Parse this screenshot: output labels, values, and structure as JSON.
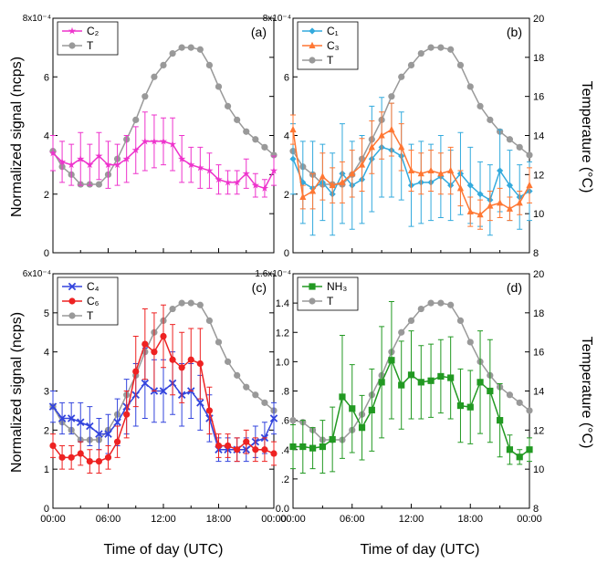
{
  "figure": {
    "x_axis_title": "Time of day (UTC)",
    "y_left_title": "Normalized signal (ncps)",
    "y_right_title": "Temperature (°C)"
  },
  "chart_data": [
    {
      "type": "line",
      "panel_label": "(a)",
      "y_multiplier": "8x10⁻⁴",
      "x_ticks": [
        "00:00",
        "06:00",
        "12:00",
        "18:00",
        "00:00"
      ],
      "xlim_hours": [
        0,
        24
      ],
      "ylim": [
        0,
        8
      ],
      "y_ticks": [
        "0",
        "2",
        "4",
        "6"
      ],
      "temperature_axis": {
        "ylim": [
          8,
          20
        ],
        "ticks": [
          "8",
          "10",
          "12",
          "14",
          "16",
          "18",
          "20"
        ]
      },
      "legend_position": "top-left",
      "series": [
        {
          "name": "C₂",
          "color": "#ee33cc",
          "marker": "star",
          "axis": "left",
          "x": [
            0,
            1,
            2,
            3,
            4,
            5,
            6,
            7,
            8,
            9,
            10,
            11,
            12,
            13,
            14,
            15,
            16,
            17,
            18,
            19,
            20,
            21,
            22,
            23,
            24
          ],
          "y": [
            3.4,
            3.1,
            3.0,
            3.2,
            3.0,
            3.3,
            3.0,
            3.0,
            3.2,
            3.5,
            3.8,
            3.8,
            3.8,
            3.7,
            3.2,
            3.0,
            2.9,
            2.8,
            2.5,
            2.4,
            2.4,
            2.7,
            2.3,
            2.2,
            2.8
          ],
          "err": [
            0.6,
            0.7,
            0.7,
            0.9,
            0.7,
            0.8,
            0.8,
            0.7,
            0.8,
            0.8,
            1.0,
            0.9,
            0.8,
            0.9,
            0.8,
            0.6,
            0.7,
            0.6,
            0.5,
            0.4,
            0.4,
            0.5,
            0.4,
            0.3,
            0.5
          ]
        },
        {
          "name": "T",
          "color": "#999999",
          "marker": "circle",
          "axis": "right",
          "x": [
            0,
            1,
            2,
            3,
            4,
            5,
            6,
            7,
            8,
            9,
            10,
            11,
            12,
            13,
            14,
            15,
            16,
            17,
            18,
            19,
            20,
            21,
            22,
            23,
            24
          ],
          "y": [
            13.2,
            12.4,
            12.0,
            11.5,
            11.5,
            11.5,
            12.0,
            12.8,
            13.8,
            14.8,
            16.0,
            17.0,
            17.6,
            18.2,
            18.5,
            18.5,
            18.4,
            17.6,
            16.5,
            15.5,
            14.8,
            14.2,
            13.8,
            13.4,
            13.0
          ]
        }
      ]
    },
    {
      "type": "line",
      "panel_label": "(b)",
      "y_multiplier": "8x10⁻⁴",
      "x_ticks": [
        "00:00",
        "06:00",
        "12:00",
        "18:00",
        "00:00"
      ],
      "xlim_hours": [
        0,
        24
      ],
      "ylim": [
        0,
        8
      ],
      "y_ticks": [
        "0",
        "2",
        "4",
        "6"
      ],
      "temperature_axis": {
        "ylim": [
          8,
          20
        ],
        "ticks": [
          "8",
          "10",
          "12",
          "14",
          "16",
          "18",
          "20"
        ]
      },
      "legend_position": "top-left",
      "series": [
        {
          "name": "C₁",
          "color": "#33aadd",
          "marker": "diamond",
          "axis": "left",
          "x": [
            0,
            1,
            2,
            3,
            4,
            5,
            6,
            7,
            8,
            9,
            10,
            11,
            12,
            13,
            14,
            15,
            16,
            17,
            18,
            19,
            20,
            21,
            22,
            23,
            24
          ],
          "y": [
            3.2,
            2.4,
            2.2,
            2.4,
            2.0,
            2.7,
            2.3,
            2.5,
            3.2,
            3.6,
            3.5,
            3.3,
            2.3,
            2.4,
            2.4,
            2.6,
            2.3,
            2.7,
            2.3,
            2.0,
            1.8,
            2.8,
            2.3,
            1.9,
            2.1
          ],
          "err": [
            1.2,
            1.4,
            1.6,
            1.3,
            1.4,
            1.7,
            1.5,
            1.5,
            1.8,
            1.7,
            1.6,
            1.5,
            1.4,
            1.4,
            1.3,
            1.4,
            1.2,
            1.4,
            1.3,
            1.1,
            1.2,
            1.4,
            1.2,
            1.1,
            1.0
          ]
        },
        {
          "name": "C₃",
          "color": "#ff7733",
          "marker": "triangle",
          "axis": "left",
          "x": [
            0,
            1,
            2,
            3,
            4,
            5,
            6,
            7,
            8,
            9,
            10,
            11,
            12,
            13,
            14,
            15,
            16,
            17,
            18,
            19,
            20,
            21,
            22,
            23,
            24
          ],
          "y": [
            4.2,
            1.9,
            2.1,
            2.6,
            2.3,
            2.4,
            2.7,
            3.0,
            3.6,
            4.0,
            4.2,
            3.6,
            2.8,
            2.7,
            2.8,
            2.7,
            2.8,
            2.2,
            1.4,
            1.3,
            1.6,
            1.7,
            1.5,
            1.7,
            2.3
          ],
          "err": [
            0.5,
            0.4,
            0.6,
            0.8,
            0.6,
            0.7,
            0.8,
            0.9,
            0.9,
            0.8,
            0.9,
            0.8,
            0.7,
            0.7,
            0.7,
            0.7,
            0.8,
            0.6,
            0.5,
            0.5,
            0.5,
            0.5,
            0.4,
            0.4,
            0.6
          ]
        },
        {
          "name": "T",
          "color": "#999999",
          "marker": "circle",
          "axis": "right",
          "x": [
            0,
            1,
            2,
            3,
            4,
            5,
            6,
            7,
            8,
            9,
            10,
            11,
            12,
            13,
            14,
            15,
            16,
            17,
            18,
            19,
            20,
            21,
            22,
            23,
            24
          ],
          "y": [
            13.2,
            12.4,
            12.0,
            11.5,
            11.5,
            11.5,
            12.0,
            12.8,
            13.8,
            14.8,
            16.0,
            17.0,
            17.6,
            18.2,
            18.5,
            18.5,
            18.4,
            17.6,
            16.5,
            15.5,
            14.8,
            14.2,
            13.8,
            13.4,
            13.0
          ]
        }
      ]
    },
    {
      "type": "line",
      "panel_label": "(c)",
      "y_multiplier": "6x10⁻⁴",
      "x_ticks": [
        "00:00",
        "06:00",
        "12:00",
        "18:00",
        "00:00"
      ],
      "xlim_hours": [
        0,
        24
      ],
      "ylim": [
        0,
        6
      ],
      "y_ticks": [
        "0",
        "1",
        "2",
        "3",
        "4",
        "5"
      ],
      "temperature_axis": {
        "ylim": [
          8,
          20
        ],
        "ticks": [
          "8",
          "10",
          "12",
          "14",
          "16",
          "18",
          "20"
        ]
      },
      "legend_position": "top-left",
      "series": [
        {
          "name": "C₄",
          "color": "#3344dd",
          "marker": "x",
          "axis": "left",
          "x": [
            0,
            1,
            2,
            3,
            4,
            5,
            6,
            7,
            8,
            9,
            10,
            11,
            12,
            13,
            14,
            15,
            16,
            17,
            18,
            19,
            20,
            21,
            22,
            23,
            24
          ],
          "y": [
            2.6,
            2.3,
            2.3,
            2.2,
            2.1,
            1.9,
            1.9,
            2.2,
            2.6,
            2.9,
            3.2,
            3.0,
            3.0,
            3.2,
            2.9,
            3.0,
            2.7,
            2.3,
            1.5,
            1.5,
            1.5,
            1.5,
            1.7,
            1.8,
            2.3
          ],
          "err": [
            0.4,
            0.4,
            0.4,
            0.5,
            0.5,
            0.4,
            0.5,
            0.6,
            0.7,
            0.8,
            0.9,
            0.8,
            0.8,
            0.8,
            0.8,
            0.7,
            0.7,
            0.6,
            0.3,
            0.3,
            0.3,
            0.3,
            0.4,
            0.4,
            0.4
          ]
        },
        {
          "name": "C₆",
          "color": "#ee2222",
          "marker": "circle",
          "axis": "left",
          "x": [
            0,
            1,
            2,
            3,
            4,
            5,
            6,
            7,
            8,
            9,
            10,
            11,
            12,
            13,
            14,
            15,
            16,
            17,
            18,
            19,
            20,
            21,
            22,
            23,
            24
          ],
          "y": [
            1.6,
            1.3,
            1.3,
            1.4,
            1.2,
            1.2,
            1.3,
            1.7,
            2.4,
            3.5,
            4.2,
            4.0,
            4.4,
            3.8,
            3.6,
            3.8,
            3.7,
            2.5,
            1.6,
            1.6,
            1.5,
            1.7,
            1.5,
            1.5,
            1.4
          ],
          "err": [
            0.3,
            0.3,
            0.3,
            0.3,
            0.3,
            0.3,
            0.3,
            0.4,
            0.6,
            0.9,
            0.9,
            1.0,
            0.8,
            0.9,
            0.9,
            0.8,
            0.9,
            0.6,
            0.3,
            0.3,
            0.3,
            0.3,
            0.3,
            0.3,
            0.3
          ]
        },
        {
          "name": "T",
          "color": "#999999",
          "marker": "circle",
          "axis": "right",
          "x": [
            0,
            1,
            2,
            3,
            4,
            5,
            6,
            7,
            8,
            9,
            10,
            11,
            12,
            13,
            14,
            15,
            16,
            17,
            18,
            19,
            20,
            21,
            22,
            23,
            24
          ],
          "y": [
            13.2,
            12.4,
            12.0,
            11.5,
            11.5,
            11.5,
            12.0,
            12.8,
            13.8,
            14.8,
            16.0,
            17.0,
            17.6,
            18.2,
            18.5,
            18.5,
            18.4,
            17.6,
            16.5,
            15.5,
            14.8,
            14.2,
            13.8,
            13.4,
            13.0
          ]
        }
      ]
    },
    {
      "type": "line",
      "panel_label": "(d)",
      "y_multiplier": "1.6x10⁻⁴",
      "x_ticks": [
        "00:00",
        "06:00",
        "12:00",
        "18:00",
        "00:00"
      ],
      "xlim_hours": [
        0,
        24
      ],
      "ylim": [
        0,
        1.6
      ],
      "y_ticks": [
        "0.0",
        ".2",
        ".4",
        ".6",
        ".8",
        "1.0",
        "1.2",
        "1.4"
      ],
      "temperature_axis": {
        "ylim": [
          8,
          20
        ],
        "ticks": [
          "8",
          "10",
          "12",
          "14",
          "16",
          "18",
          "20"
        ]
      },
      "legend_position": "top-left",
      "series": [
        {
          "name": "NH₃",
          "color": "#229922",
          "marker": "square",
          "axis": "left",
          "x": [
            0,
            1,
            2,
            3,
            4,
            5,
            6,
            7,
            8,
            9,
            10,
            11,
            12,
            13,
            14,
            15,
            16,
            17,
            18,
            19,
            20,
            21,
            22,
            23,
            24
          ],
          "y": [
            0.42,
            0.42,
            0.41,
            0.42,
            0.47,
            0.76,
            0.68,
            0.55,
            0.67,
            0.86,
            1.01,
            0.84,
            0.91,
            0.86,
            0.87,
            0.9,
            0.89,
            0.7,
            0.69,
            0.86,
            0.8,
            0.6,
            0.4,
            0.35,
            0.4
          ],
          "err": [
            0.15,
            0.18,
            0.14,
            0.18,
            0.22,
            0.42,
            0.3,
            0.22,
            0.28,
            0.38,
            0.4,
            0.3,
            0.3,
            0.25,
            0.25,
            0.25,
            0.28,
            0.25,
            0.25,
            0.35,
            0.35,
            0.25,
            0.1,
            0.05,
            0.08
          ]
        },
        {
          "name": "T",
          "color": "#999999",
          "marker": "circle",
          "axis": "right",
          "x": [
            0,
            1,
            2,
            3,
            4,
            5,
            6,
            7,
            8,
            9,
            10,
            11,
            12,
            13,
            14,
            15,
            16,
            17,
            18,
            19,
            20,
            21,
            22,
            23,
            24
          ],
          "y": [
            12.5,
            12.4,
            12.0,
            11.5,
            11.5,
            11.5,
            12.0,
            12.8,
            13.8,
            14.8,
            16.0,
            17.0,
            17.6,
            18.2,
            18.5,
            18.5,
            18.4,
            17.6,
            16.5,
            15.5,
            14.8,
            14.2,
            13.8,
            13.4,
            13.0
          ]
        }
      ]
    }
  ]
}
